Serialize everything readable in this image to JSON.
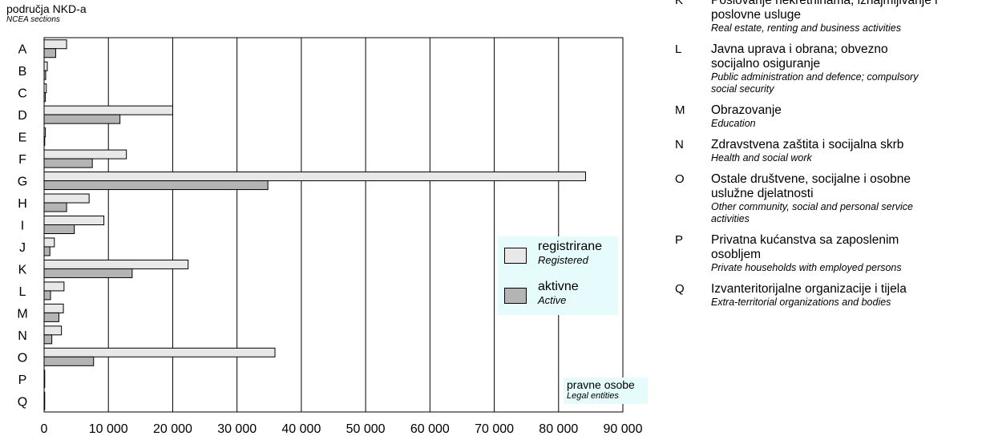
{
  "axis_title": {
    "hr": "područja NKD-a",
    "en": "NCEA sections"
  },
  "legend": [
    {
      "hr": "registrirane",
      "en": "Registered",
      "color": "#e8e8e8"
    },
    {
      "hr": "aktivne",
      "en": "Active",
      "color": "#b4b4b4"
    }
  ],
  "note": {
    "hr": "pravne osobe",
    "en": "Legal entities"
  },
  "colors": {
    "registered": "#e8e8e8",
    "active": "#b4b4b4",
    "legend_bg": "#e6fbfc"
  },
  "chart_data": {
    "type": "bar",
    "orientation": "horizontal",
    "categories": [
      "A",
      "B",
      "C",
      "D",
      "E",
      "F",
      "G",
      "H",
      "I",
      "J",
      "K",
      "L",
      "M",
      "N",
      "O",
      "P",
      "Q"
    ],
    "series": [
      {
        "name": "registrirane",
        "values": [
          3500,
          500,
          350,
          20000,
          200,
          12800,
          84200,
          7000,
          9300,
          1600,
          22400,
          3100,
          3000,
          2700,
          35900,
          50,
          20
        ]
      },
      {
        "name": "aktivne",
        "values": [
          1800,
          250,
          200,
          11800,
          100,
          7500,
          34800,
          3500,
          4700,
          900,
          13700,
          1000,
          2300,
          1200,
          7700,
          20,
          10
        ]
      }
    ],
    "xlim": [
      0,
      90000
    ],
    "xticks": [
      "0",
      "10 000",
      "20 000",
      "30 000",
      "40 000",
      "50 000",
      "60 000",
      "70 000",
      "80 000",
      "90 000"
    ],
    "grid": true,
    "legend_position": "right"
  },
  "sections": [
    {
      "code": "K",
      "hr": "Poslovanje nekretninama, iznajmljivanje i",
      "hr2": "poslovne usluge",
      "en": "Real estate, renting and business activities"
    },
    {
      "code": "L",
      "hr": "Javna uprava i obrana; obvezno",
      "hr2": "socijalno osiguranje",
      "en": "Public administration and defence; compulsory",
      "en2": "social security"
    },
    {
      "code": "M",
      "hr": "Obrazovanje",
      "en": "Education"
    },
    {
      "code": "N",
      "hr": "Zdravstvena zaštita i socijalna skrb",
      "en": "Health and social work"
    },
    {
      "code": "O",
      "hr": "Ostale društvene, socijalne i osobne",
      "hr2": "uslužne djelatnosti",
      "en": "Other community, social and personal service",
      "en2": "activities"
    },
    {
      "code": "P",
      "hr": "Privatna kućanstva sa zaposlenim",
      "hr2": "osobljem",
      "en": "Private households with employed persons"
    },
    {
      "code": "Q",
      "hr": "Izvanteritorijalne organizacije i tijela",
      "en": "Extra-territorial organizations and bodies"
    }
  ]
}
